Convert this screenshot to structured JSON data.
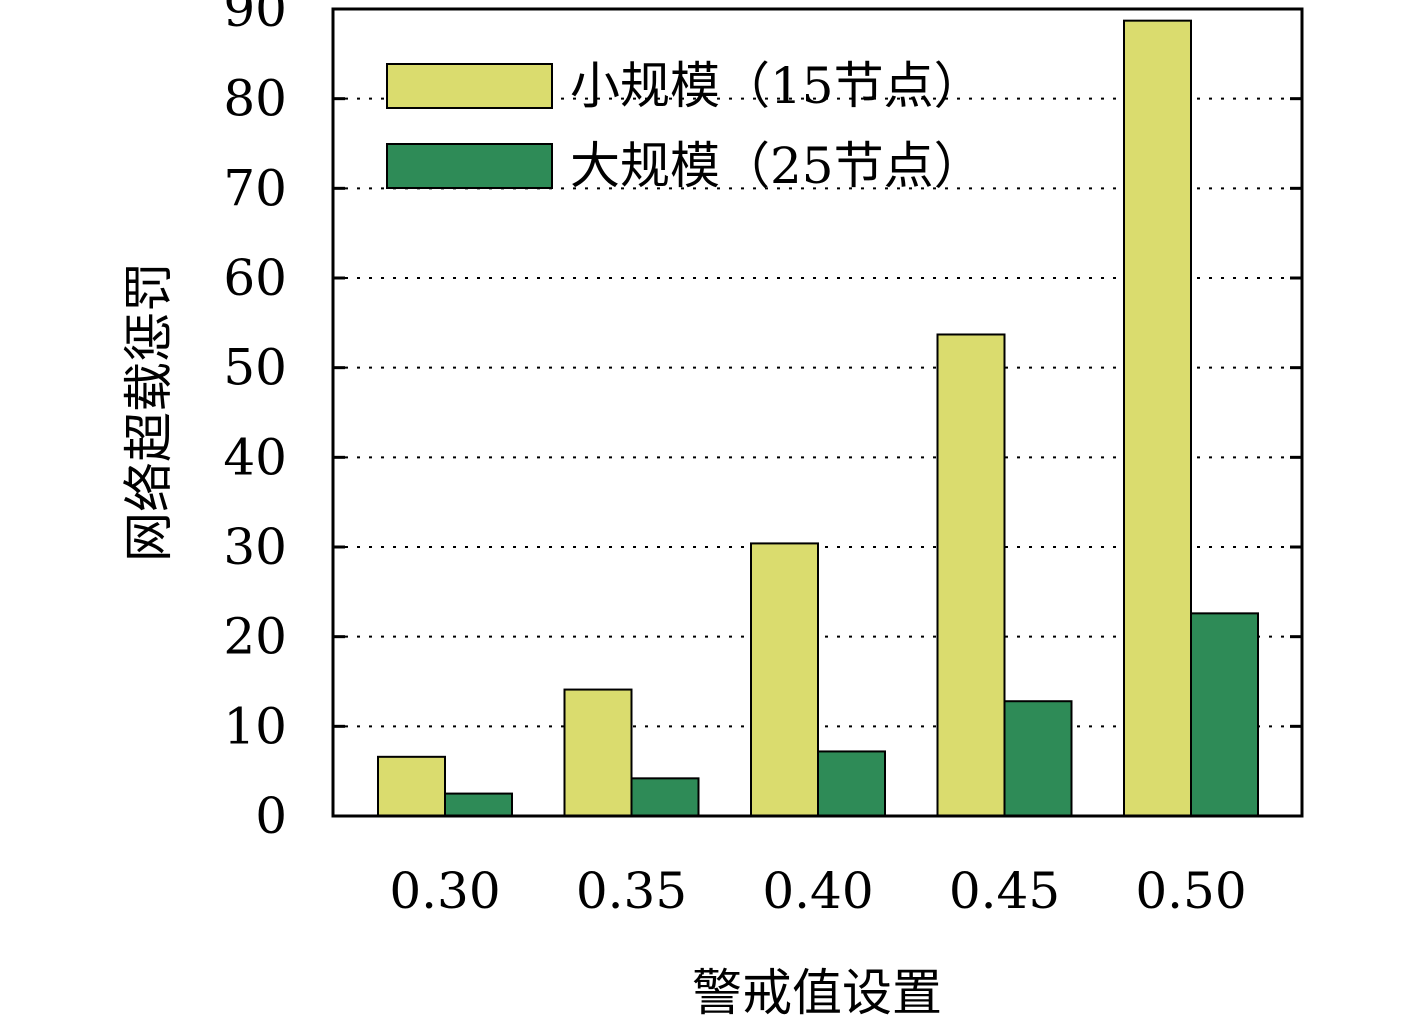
{
  "chart_data": {
    "type": "bar",
    "categories": [
      "0.30",
      "0.35",
      "0.40",
      "0.45",
      "0.50"
    ],
    "series": [
      {
        "name": "小规模（15节点）",
        "values": [
          6.6,
          14.1,
          30.4,
          53.7,
          88.7
        ],
        "color": "#dadc6e"
      },
      {
        "name": "大规模（25节点）",
        "values": [
          2.5,
          4.2,
          7.2,
          12.8,
          22.6
        ],
        "color": "#2e8b57"
      }
    ],
    "xlabel": "警戒值设置",
    "ylabel": "网络超载惩罚",
    "ylim": [
      0,
      90
    ],
    "yticks": [
      0,
      10,
      20,
      30,
      40,
      50,
      60,
      70,
      80,
      90
    ],
    "grid": "horizontal-dotted",
    "legend_position": "top-left"
  }
}
